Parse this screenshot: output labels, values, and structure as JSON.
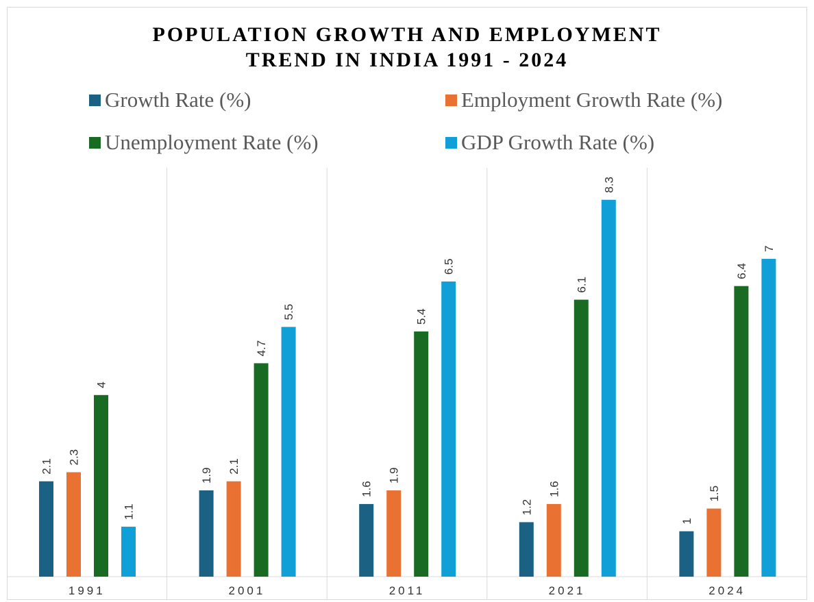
{
  "chart_data": {
    "type": "bar",
    "title": [
      "POPULATION GROWTH AND EMPLOYMENT",
      "TREND IN INDIA 1991 - 2024"
    ],
    "categories": [
      "1991",
      "2001",
      "2011",
      "2021",
      "2024"
    ],
    "series": [
      {
        "name": "Growth Rate (%)",
        "color": "#1a6184",
        "values": [
          2.1,
          1.9,
          1.6,
          1.2,
          1
        ]
      },
      {
        "name": "Employment Growth Rate (%)",
        "color": "#e97132",
        "values": [
          2.3,
          2.1,
          1.9,
          1.6,
          1.5
        ]
      },
      {
        "name": "Unemployment Rate (%)",
        "color": "#196b24",
        "values": [
          4,
          4.7,
          5.4,
          6.1,
          6.4
        ]
      },
      {
        "name": "GDP Growth Rate (%)",
        "color": "#119fd7",
        "values": [
          1.1,
          5.5,
          6.5,
          8.3,
          7
        ]
      }
    ],
    "legend_position": "top",
    "grid": "vertical category separators",
    "data_labels": "rotated vertical above bars",
    "ylim": [
      0,
      9
    ]
  }
}
